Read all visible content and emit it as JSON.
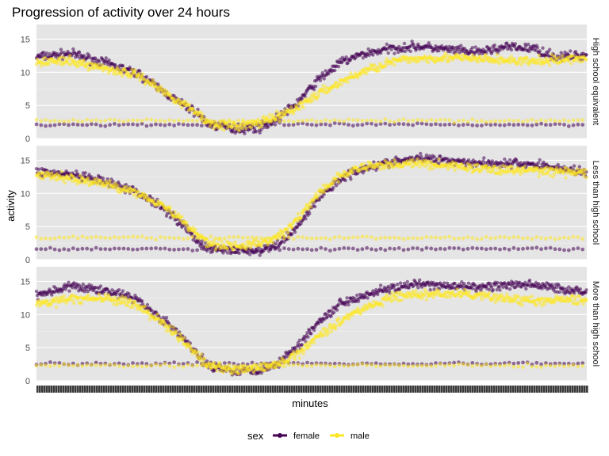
{
  "chart_data": {
    "type": "scatter",
    "title": "Progression of activity over 24 hours",
    "xlabel": "minutes",
    "ylabel": "activity",
    "xlim": [
      1,
      1440
    ],
    "ylim": [
      0,
      17.2
    ],
    "y_ticks": [
      0,
      5,
      10,
      15
    ],
    "x_tick_labels_note": "1440 overlapping minute tick labels (unreadable)",
    "grid": true,
    "legend": {
      "title": "sex",
      "position": "bottom",
      "entries": [
        {
          "name": "female",
          "color": "#440154"
        },
        {
          "name": "male",
          "color": "#FDE725"
        }
      ]
    },
    "series_colors": {
      "female": "#440154",
      "male": "#FDE725"
    },
    "facets": [
      {
        "label": "High school equivalent",
        "series": [
          {
            "name": "female",
            "mean_profile": [
              [
                1,
                12.3
              ],
              [
                90,
                12.8
              ],
              [
                180,
                11.4
              ],
              [
                270,
                9.7
              ],
              [
                330,
                7.2
              ],
              [
                380,
                5.2
              ],
              [
                420,
                3.9
              ],
              [
                450,
                2.2
              ],
              [
                520,
                1.4
              ],
              [
                580,
                1.6
              ],
              [
                620,
                2.6
              ],
              [
                680,
                5.2
              ],
              [
                740,
                9.0
              ],
              [
                800,
                11.6
              ],
              [
                860,
                12.8
              ],
              [
                930,
                13.6
              ],
              [
                1000,
                13.9
              ],
              [
                1080,
                13.4
              ],
              [
                1150,
                13.0
              ],
              [
                1230,
                13.8
              ],
              [
                1300,
                13.6
              ],
              [
                1360,
                12.3
              ],
              [
                1440,
                12.6
              ]
            ],
            "baseline": 2.1
          },
          {
            "name": "male",
            "mean_profile": [
              [
                1,
                11.7
              ],
              [
                90,
                11.6
              ],
              [
                180,
                10.6
              ],
              [
                270,
                9.5
              ],
              [
                330,
                7.2
              ],
              [
                380,
                5.4
              ],
              [
                420,
                4.0
              ],
              [
                450,
                2.4
              ],
              [
                520,
                1.8
              ],
              [
                580,
                2.3
              ],
              [
                620,
                3.0
              ],
              [
                680,
                4.6
              ],
              [
                740,
                6.8
              ],
              [
                800,
                8.6
              ],
              [
                860,
                10.2
              ],
              [
                930,
                11.6
              ],
              [
                1000,
                12.1
              ],
              [
                1080,
                12.2
              ],
              [
                1150,
                12.0
              ],
              [
                1230,
                11.8
              ],
              [
                1300,
                11.6
              ],
              [
                1360,
                11.8
              ],
              [
                1440,
                12.2
              ]
            ],
            "baseline": 2.7
          }
        ]
      },
      {
        "label": "Less than high school",
        "series": [
          {
            "name": "female",
            "mean_profile": [
              [
                1,
                13.3
              ],
              [
                90,
                12.8
              ],
              [
                180,
                11.7
              ],
              [
                260,
                10.3
              ],
              [
                330,
                8.0
              ],
              [
                380,
                5.5
              ],
              [
                420,
                3.0
              ],
              [
                450,
                1.6
              ],
              [
                530,
                1.4
              ],
              [
                590,
                1.3
              ],
              [
                640,
                2.5
              ],
              [
                690,
                5.5
              ],
              [
                740,
                9.4
              ],
              [
                800,
                12.4
              ],
              [
                860,
                13.9
              ],
              [
                930,
                14.7
              ],
              [
                1000,
                15.3
              ],
              [
                1080,
                15.0
              ],
              [
                1150,
                14.6
              ],
              [
                1230,
                14.5
              ],
              [
                1300,
                14.4
              ],
              [
                1360,
                13.9
              ],
              [
                1440,
                13.1
              ]
            ],
            "baseline": 1.6
          },
          {
            "name": "male",
            "mean_profile": [
              [
                1,
                12.8
              ],
              [
                90,
                12.3
              ],
              [
                180,
                11.4
              ],
              [
                260,
                10.2
              ],
              [
                330,
                8.3
              ],
              [
                380,
                6.0
              ],
              [
                420,
                4.0
              ],
              [
                450,
                2.5
              ],
              [
                530,
                2.0
              ],
              [
                590,
                2.5
              ],
              [
                640,
                3.7
              ],
              [
                690,
                6.6
              ],
              [
                740,
                10.0
              ],
              [
                800,
                12.8
              ],
              [
                860,
                14.0
              ],
              [
                930,
                14.4
              ],
              [
                1000,
                14.5
              ],
              [
                1080,
                14.2
              ],
              [
                1150,
                13.8
              ],
              [
                1230,
                13.5
              ],
              [
                1300,
                13.5
              ],
              [
                1360,
                13.3
              ],
              [
                1440,
                13.1
              ]
            ],
            "baseline": 3.3
          }
        ]
      },
      {
        "label": "More than high school",
        "series": [
          {
            "name": "female",
            "mean_profile": [
              [
                1,
                13.0
              ],
              [
                90,
                14.2
              ],
              [
                180,
                13.7
              ],
              [
                260,
                12.4
              ],
              [
                330,
                9.3
              ],
              [
                380,
                6.7
              ],
              [
                420,
                4.0
              ],
              [
                450,
                2.3
              ],
              [
                520,
                1.5
              ],
              [
                580,
                1.6
              ],
              [
                630,
                2.5
              ],
              [
                690,
                5.6
              ],
              [
                740,
                9.0
              ],
              [
                800,
                11.8
              ],
              [
                860,
                13.0
              ],
              [
                930,
                14.0
              ],
              [
                1000,
                14.5
              ],
              [
                1080,
                14.3
              ],
              [
                1150,
                14.1
              ],
              [
                1230,
                14.4
              ],
              [
                1300,
                14.5
              ],
              [
                1360,
                14.0
              ],
              [
                1440,
                13.4
              ]
            ],
            "baseline": 2.6
          },
          {
            "name": "male",
            "mean_profile": [
              [
                1,
                11.6
              ],
              [
                90,
                12.3
              ],
              [
                180,
                12.5
              ],
              [
                260,
                11.5
              ],
              [
                330,
                8.8
              ],
              [
                380,
                6.3
              ],
              [
                420,
                3.9
              ],
              [
                450,
                2.3
              ],
              [
                520,
                1.7
              ],
              [
                580,
                1.8
              ],
              [
                630,
                2.4
              ],
              [
                690,
                4.3
              ],
              [
                740,
                6.9
              ],
              [
                800,
                9.2
              ],
              [
                860,
                11.0
              ],
              [
                930,
                12.6
              ],
              [
                1000,
                13.0
              ],
              [
                1080,
                13.1
              ],
              [
                1150,
                12.9
              ],
              [
                1230,
                12.4
              ],
              [
                1300,
                12.0
              ],
              [
                1360,
                12.1
              ],
              [
                1440,
                12.3
              ]
            ],
            "baseline": 2.3
          }
        ]
      }
    ]
  }
}
